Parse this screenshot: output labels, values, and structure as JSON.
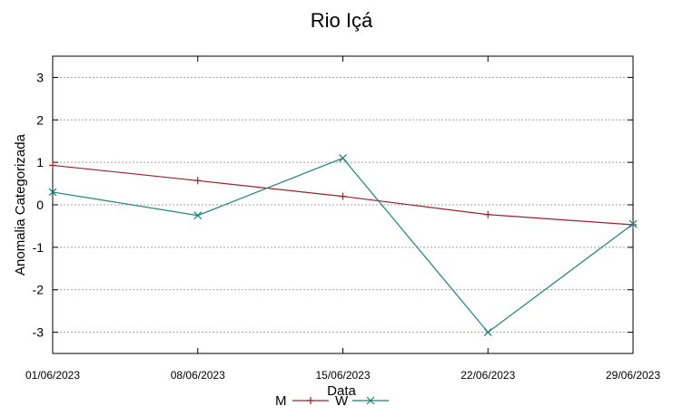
{
  "chart_data": {
    "type": "line",
    "title": "Rio Içá",
    "xlabel": "Data",
    "ylabel": "Anomalia Categorizada",
    "categories": [
      "01/06/2023",
      "08/06/2023",
      "15/06/2023",
      "22/06/2023",
      "29/06/2023"
    ],
    "ylim": [
      -3.5,
      3.5
    ],
    "yticks": [
      3,
      2,
      1,
      0,
      -1,
      -2,
      -3
    ],
    "grid": "horizontal dotted",
    "legend_position": "bottom-center",
    "series": [
      {
        "name": "M",
        "values": [
          0.93,
          0.57,
          0.2,
          -0.23,
          -0.47
        ],
        "color": "#a0202a",
        "marker": "plus"
      },
      {
        "name": "W",
        "values": [
          0.3,
          -0.25,
          1.1,
          -3.0,
          -0.45
        ],
        "color": "#1a7f80",
        "marker": "cross"
      }
    ]
  }
}
